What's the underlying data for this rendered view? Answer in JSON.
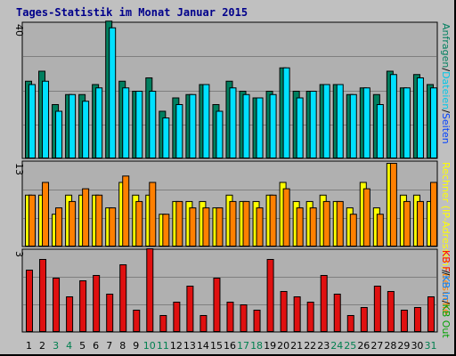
{
  "title": "Tages-Statistik im Monat Januar 2015",
  "colors": {
    "background": "#c0c0c0",
    "panel": "#b0b0b0",
    "gridline": "#7f7f7f",
    "title": "#00008b",
    "weekday_label": "#000000",
    "weekend_label": "#007f4f",
    "anfragen": "#007f5f",
    "dateien": "#00e0ff",
    "rechner": "#ffff00",
    "besuche": "#ff8000",
    "kb_in": "#0080ff",
    "kb_f": "#ff0000",
    "kb_f_front": "#e01010"
  },
  "chart_data": [
    {
      "type": "bar",
      "panel": "top",
      "ylim": [
        0,
        40
      ],
      "ytick": "40",
      "legend": [
        {
          "text": "Anfragen",
          "color": "#007f5f"
        },
        {
          "text": "/",
          "color": "#000000"
        },
        {
          "text": "Dateien",
          "color": "#00c8e8"
        },
        {
          "text": "/",
          "color": "#000000"
        },
        {
          "text": "Seiten",
          "color": "#0040ff"
        }
      ],
      "categories": [
        "1",
        "2",
        "3",
        "4",
        "5",
        "6",
        "7",
        "8",
        "9",
        "10",
        "11",
        "12",
        "13",
        "14",
        "15",
        "16",
        "17",
        "18",
        "19",
        "20",
        "21",
        "22",
        "23",
        "24",
        "25",
        "26",
        "27",
        "28",
        "29",
        "30",
        "31"
      ],
      "series": [
        {
          "name": "Anfragen",
          "values": [
            23,
            26,
            16,
            19,
            19,
            22,
            41,
            23,
            20,
            24,
            14,
            18,
            19,
            22,
            16,
            23,
            20,
            18,
            20,
            27,
            20,
            20,
            22,
            22,
            19,
            21,
            19,
            26,
            21,
            25,
            22
          ]
        },
        {
          "name": "Dateien",
          "values": [
            22,
            23,
            14,
            19,
            17,
            21,
            39,
            21,
            20,
            20,
            12,
            16,
            19,
            22,
            14,
            21,
            19,
            18,
            19,
            27,
            18,
            20,
            22,
            22,
            19,
            21,
            16,
            25,
            21,
            24,
            21
          ]
        }
      ]
    },
    {
      "type": "bar",
      "panel": "middle",
      "ylim": [
        0,
        13
      ],
      "ytick": "13",
      "legend": [
        {
          "text": "Rechner (IP-Adressen)",
          "color": "#ffff00"
        },
        {
          "text": "/",
          "color": "#000000"
        },
        {
          "text": "Besuche",
          "color": "#ff8000"
        }
      ],
      "categories": [
        "1",
        "2",
        "3",
        "4",
        "5",
        "6",
        "7",
        "8",
        "9",
        "10",
        "11",
        "12",
        "13",
        "14",
        "15",
        "16",
        "17",
        "18",
        "19",
        "20",
        "21",
        "22",
        "23",
        "24",
        "25",
        "26",
        "27",
        "28",
        "29",
        "30",
        "31"
      ],
      "series": [
        {
          "name": "Rechner (IP-Adressen)",
          "values": [
            8,
            8,
            5,
            8,
            8,
            8,
            6,
            10,
            8,
            8,
            5,
            7,
            7,
            7,
            6,
            8,
            7,
            7,
            8,
            10,
            7,
            7,
            8,
            7,
            6,
            10,
            6,
            13,
            8,
            8,
            7
          ]
        },
        {
          "name": "Besuche",
          "values": [
            8,
            10,
            6,
            7,
            9,
            8,
            6,
            11,
            7,
            10,
            5,
            7,
            6,
            6,
            6,
            7,
            7,
            6,
            8,
            9,
            6,
            6,
            7,
            7,
            5,
            9,
            5,
            13,
            7,
            7,
            10
          ]
        }
      ]
    },
    {
      "type": "bar",
      "panel": "bottom",
      "ylim": [
        0,
        3
      ],
      "ytick": "3",
      "legend": [
        {
          "text": "KB F",
          "color": "#ff0000"
        },
        {
          "text": "/",
          "color": "#000000"
        },
        {
          "text": "KB In",
          "color": "#0080ff"
        },
        {
          "text": "/",
          "color": "#000000"
        },
        {
          "text": "KB Out",
          "color": "#00a000"
        }
      ],
      "categories": [
        "1",
        "2",
        "3",
        "4",
        "5",
        "6",
        "7",
        "8",
        "9",
        "10",
        "11",
        "12",
        "13",
        "14",
        "15",
        "16",
        "17",
        "18",
        "19",
        "20",
        "21",
        "22",
        "23",
        "24",
        "25",
        "26",
        "27",
        "28",
        "29",
        "30",
        "31"
      ],
      "series": [
        {
          "name": "KB F",
          "values": [
            2.3,
            2.7,
            2.0,
            1.3,
            1.9,
            2.1,
            1.4,
            2.5,
            0.8,
            3.1,
            0.6,
            1.1,
            1.7,
            0.6,
            2.0,
            1.1,
            1.0,
            0.8,
            2.7,
            1.5,
            1.3,
            1.1,
            2.1,
            1.4,
            0.6,
            0.9,
            1.7,
            1.5,
            0.8,
            0.9,
            1.3
          ]
        }
      ]
    }
  ],
  "weekend_days": [
    "3",
    "4",
    "10",
    "11",
    "17",
    "18",
    "24",
    "25",
    "31"
  ]
}
